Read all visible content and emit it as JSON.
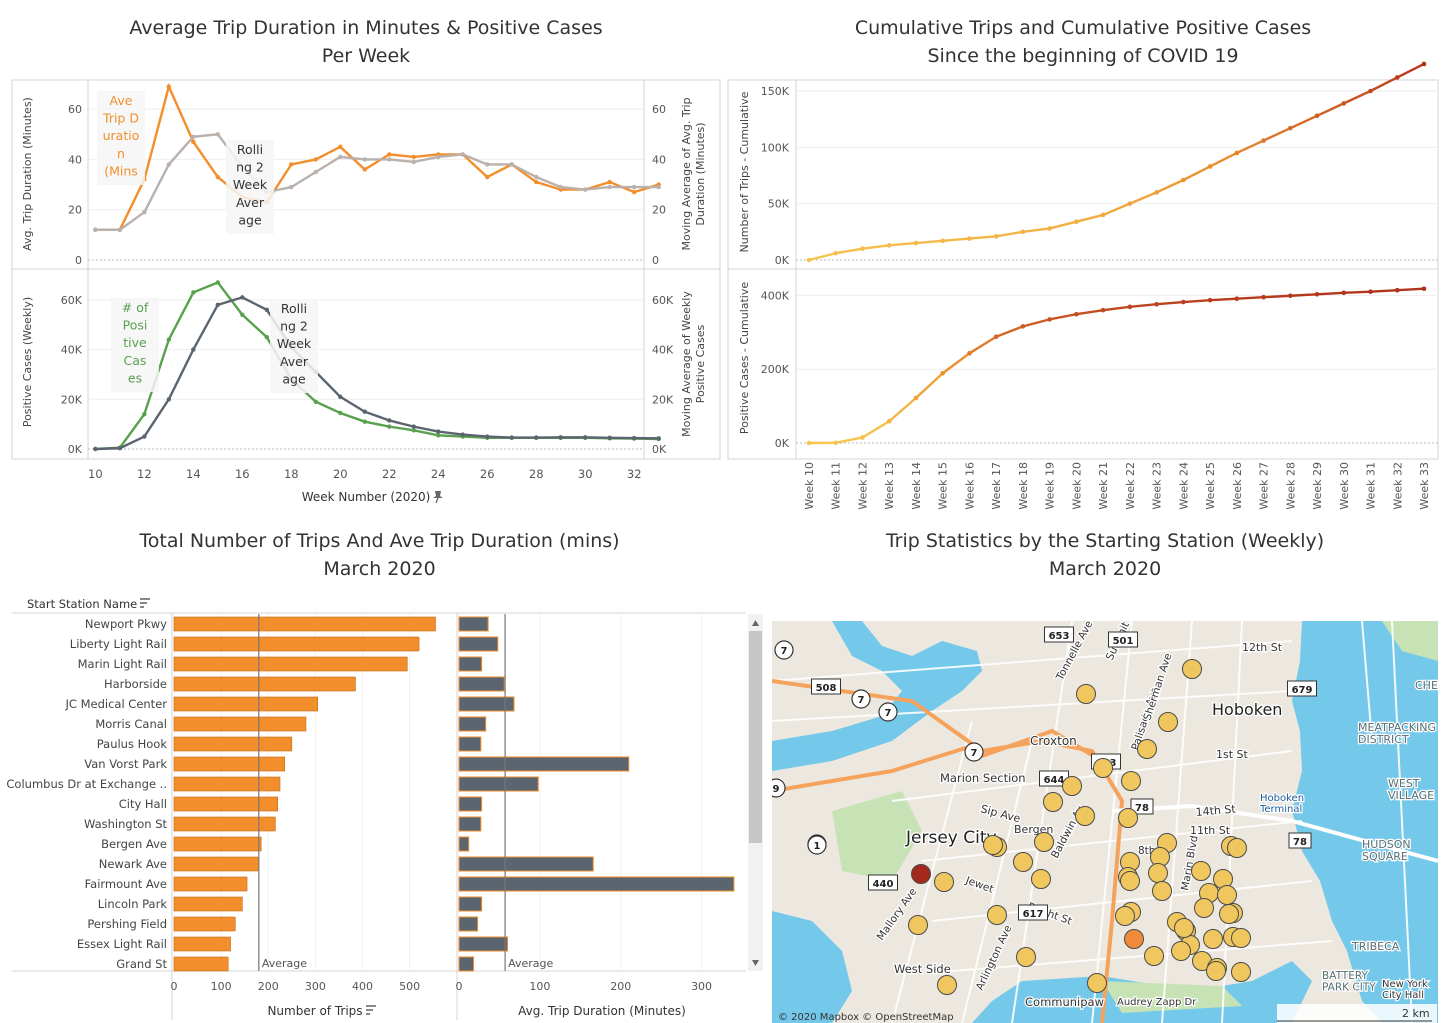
{
  "panel1": {
    "title_line1": "Average Trip Duration in Minutes & Positive Cases",
    "title_line2": "Per Week",
    "top_left_axis_label": "Avg. Trip Duration (Minutes)",
    "top_right_axis_label_line1": "Moving Average of Avg. Trip",
    "top_right_axis_label_line2": "Duration (Minutes)",
    "bottom_left_axis_label": "Positive Cases (Weekly)",
    "bottom_right_axis_label_line1": "Moving Average of Weekly",
    "bottom_right_axis_label_line2": "Positive Cases",
    "xlabel": "Week Number (2020)",
    "series_annotations": {
      "ave_trip_duration": [
        "Ave",
        "Trip D",
        "uratio",
        "n",
        "(Mins"
      ],
      "rolling_top": [
        "Rolli",
        "ng 2",
        "Week",
        "Aver",
        "age"
      ],
      "positive_cases": [
        "# of",
        "Posi",
        "tive",
        "Cas",
        "es"
      ],
      "rolling_bottom": [
        "Rolli",
        "ng 2",
        "Week",
        "Aver",
        "age"
      ]
    },
    "colors": {
      "orange": "#f28e2b",
      "gray": "#bab0ac",
      "green": "#59a14f",
      "dark": "#5b6570"
    }
  },
  "panel2": {
    "title_line1": "Cumulative Trips and Cumulative Positive Cases",
    "title_line2": "Since the beginning of COVID 19",
    "top_axis_label": "Number of Trips - Cumulative",
    "bottom_axis_label": "Positive Cases - Cumulative"
  },
  "panel3": {
    "title_line1": "Total Number of Trips And Ave Trip Duration (mins)",
    "title_line2": "March 2020",
    "header": "Start Station Name",
    "xlabel_left": "Number of Trips",
    "xlabel_right": "Avg. Trip Duration (Minutes)",
    "ref_label": "Average",
    "colors": {
      "orange": "#f28e2b",
      "dark": "#5b6570"
    }
  },
  "panel4": {
    "title_line1": "Trip Statistics by the Starting Station (Weekly)",
    "title_line2": "March 2020",
    "attribution": "© 2020 Mapbox © OpenStreetMap",
    "scale": "2 km",
    "labels": [
      "Hoboken",
      "Jersey City",
      "Croxton",
      "Marion Section",
      "West Side",
      "Communipaw",
      "Bergen",
      "TRIBECA",
      "HUDSON SQUARE",
      "MEATPACKING DISTRICT",
      "WEST VILLAGE",
      "BATTERY PARK CITY",
      "New York City Hall",
      "Hoboken Terminal",
      "Audrey Zapp Dr",
      "12th St",
      "14th St",
      "11th St",
      "1st St",
      "8th",
      "Sip Ave",
      "Bright St",
      "Mallory Ave",
      "Arlington Ave",
      "Baldwin Av",
      "Marin Blvd",
      "Summit Av",
      "Palisade Ave",
      "Sherman Ave",
      "Tonnelle Ave",
      "CHE",
      "Jewet"
    ],
    "road_badges": [
      "7",
      "7",
      "7",
      "7",
      "508",
      "653",
      "501",
      "679",
      "644",
      "663",
      "617",
      "440",
      "78",
      "78",
      "1",
      "9",
      "1"
    ],
    "colors": {
      "water": "#74c8ea",
      "land": "#ece8e0",
      "park": "#c7e3b5",
      "dot": "#f0c75e",
      "dot_orange": "#f08b3a",
      "dot_red": "#a3291c"
    }
  },
  "chart_data": [
    {
      "type": "line",
      "title": "Average Trip Duration in Minutes & Positive Cases Per Week",
      "xlabel": "Week Number (2020)",
      "x": [
        10,
        11,
        12,
        13,
        14,
        15,
        16,
        17,
        18,
        19,
        20,
        21,
        22,
        23,
        24,
        25,
        26,
        27,
        28,
        29,
        30,
        31,
        32,
        33
      ],
      "xticks": [
        10,
        12,
        14,
        16,
        18,
        20,
        22,
        24,
        26,
        28,
        30,
        32
      ],
      "panes": [
        {
          "ylabel": "Avg. Trip Duration (Minutes)",
          "ylim": [
            0,
            70
          ],
          "yticks": [
            0,
            20,
            40,
            60
          ],
          "series": [
            {
              "name": "Ave Trip Duration (Mins)",
              "color": "#f28e2b",
              "values": [
                12,
                12,
                32,
                69,
                47,
                33,
                25,
                23,
                38,
                40,
                45,
                36,
                42,
                41,
                42,
                42,
                33,
                38,
                31,
                28,
                28,
                31,
                27,
                30
              ]
            },
            {
              "name": "Rolling 2 Week Average",
              "color": "#bab0ac",
              "values": [
                12,
                12,
                19,
                38,
                49,
                50,
                37,
                27,
                29,
                35,
                41,
                40,
                40,
                39,
                41,
                42,
                38,
                38,
                33,
                29,
                28,
                29,
                29,
                29
              ]
            }
          ]
        },
        {
          "ylabel": "Positive Cases (Weekly)",
          "ylim": [
            0,
            70000
          ],
          "yticks": [
            0,
            20000,
            40000,
            60000
          ],
          "ytick_labels": [
            "0K",
            "20K",
            "40K",
            "60K"
          ],
          "series": [
            {
              "name": "# of Positive Cases",
              "color": "#59a14f",
              "values": [
                0,
                500,
                14000,
                44000,
                63000,
                67000,
                54000,
                45000,
                28000,
                19000,
                14500,
                11000,
                9000,
                7500,
                5500,
                5000,
                4500,
                4500,
                4500,
                4500,
                4500,
                4300,
                4200,
                4000
              ]
            },
            {
              "name": "Rolling 2 Week Average",
              "color": "#5b6570",
              "values": [
                0,
                300,
                5000,
                20000,
                40000,
                58000,
                61000,
                56000,
                41000,
                31000,
                21000,
                15000,
                11500,
                9000,
                7000,
                5800,
                5000,
                4600,
                4600,
                4700,
                4700,
                4500,
                4400,
                4300
              ]
            }
          ]
        }
      ]
    },
    {
      "type": "line",
      "title": "Cumulative Trips and Cumulative Positive Cases Since the beginning of COVID 19",
      "categories": [
        "Week 10",
        "Week 11",
        "Week 12",
        "Week 13",
        "Week 14",
        "Week 15",
        "Week 16",
        "Week 17",
        "Week 18",
        "Week 19",
        "Week 20",
        "Week 21",
        "Week 22",
        "Week 23",
        "Week 24",
        "Week 25",
        "Week 26",
        "Week 27",
        "Week 28",
        "Week 29",
        "Week 30",
        "Week 31",
        "Week 32",
        "Week 33"
      ],
      "panes": [
        {
          "ylabel": "Number of Trips - Cumulative",
          "ylim": [
            0,
            150000
          ],
          "yticks": [
            0,
            50000,
            100000,
            150000
          ],
          "ytick_labels": [
            "0K",
            "50K",
            "100K",
            "150K"
          ],
          "values": [
            0,
            6000,
            10000,
            13000,
            15000,
            17000,
            19000,
            21000,
            25000,
            28000,
            34000,
            40000,
            50000,
            60000,
            71000,
            83000,
            95000,
            106000,
            117000,
            128000,
            139000,
            150000,
            162000,
            174000
          ]
        },
        {
          "ylabel": "Positive Cases - Cumulative",
          "ylim": [
            0,
            420000
          ],
          "yticks": [
            0,
            200000,
            400000
          ],
          "ytick_labels": [
            "0K",
            "200K",
            "400K"
          ],
          "values": [
            0,
            500,
            15000,
            59000,
            122000,
            189000,
            243000,
            288000,
            316000,
            335000,
            349000,
            360000,
            369000,
            376000,
            382000,
            387000,
            391000,
            395000,
            399000,
            403000,
            407000,
            410000,
            414000,
            418000
          ]
        }
      ]
    },
    {
      "type": "bar",
      "title": "Total Number of Trips And Ave Trip Duration (mins) March 2020",
      "categories": [
        "Newport Pkwy",
        "Liberty Light Rail",
        "Marin Light Rail",
        "Harborside",
        "JC Medical Center",
        "Morris Canal",
        "Paulus Hook",
        "Van Vorst Park",
        "Columbus Dr at Exchange ..",
        "City Hall",
        "Washington St",
        "Bergen Ave",
        "Newark Ave",
        "Fairmount Ave",
        "Lincoln Park",
        "Pershing Field",
        "Essex Light Rail",
        "Grand St"
      ],
      "series": [
        {
          "name": "Number of Trips",
          "values": [
            555,
            520,
            495,
            385,
            305,
            280,
            250,
            235,
            225,
            220,
            215,
            185,
            180,
            155,
            145,
            130,
            120,
            115
          ],
          "xlim": [
            0,
            590
          ],
          "xticks": [
            0,
            100,
            200,
            300,
            400,
            500
          ],
          "average": 180
        },
        {
          "name": "Avg. Trip Duration (Minutes)",
          "values": [
            36,
            48,
            28,
            56,
            68,
            33,
            27,
            210,
            98,
            28,
            27,
            12,
            166,
            340,
            28,
            23,
            60,
            18
          ],
          "xlim": [
            0,
            350
          ],
          "xticks": [
            0,
            100,
            200,
            300
          ],
          "average": 57
        }
      ],
      "ref_label": "Average"
    }
  ]
}
